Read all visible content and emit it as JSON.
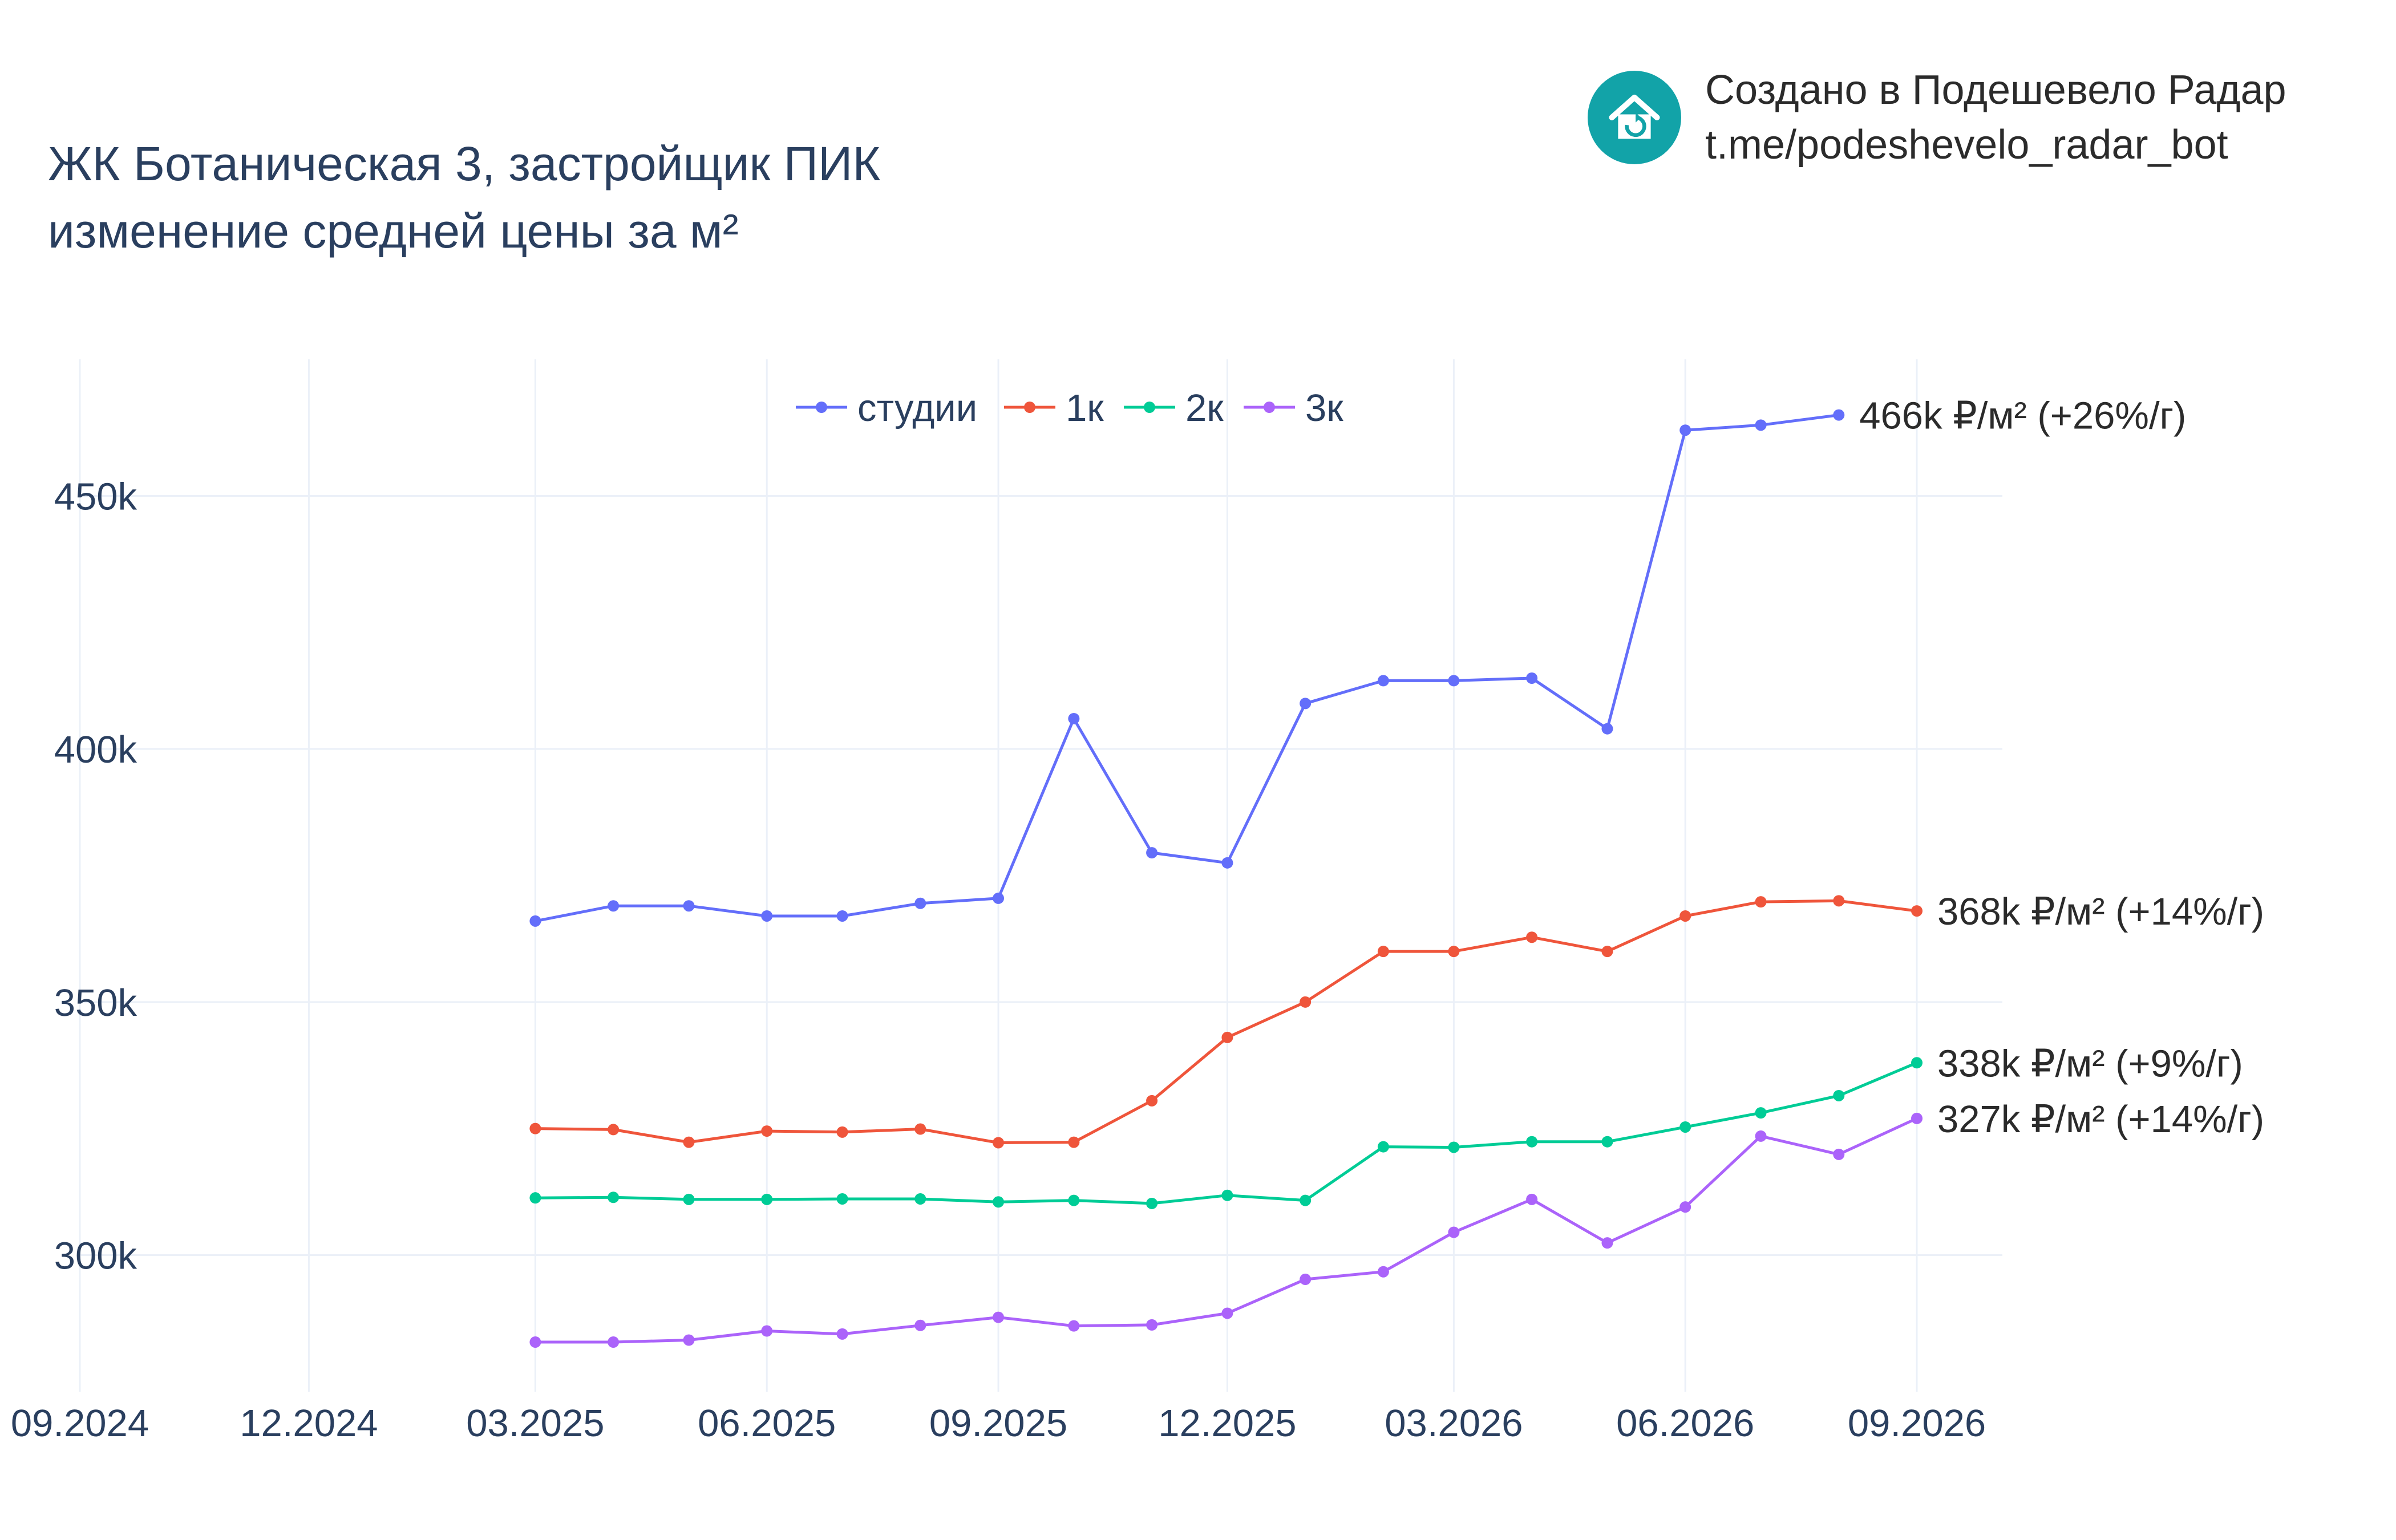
{
  "header": {
    "title_line1": "ЖК Ботаническая 3, застройщик ПИК",
    "title_line2": "изменение средней цены за м²"
  },
  "branding": {
    "line1": "Создано в Подешевело Радар",
    "line2": "t.me/podeshevelo_radar_bot",
    "logo_icon": "house-price-drop-icon",
    "logo_color": "#12a3a8"
  },
  "chart_data": {
    "type": "line",
    "x_axis": {
      "type": "date",
      "range": [
        "2024-09-01",
        "2026-10-05"
      ],
      "ticks": [
        {
          "date": "2024-09-01",
          "label": "09.2024"
        },
        {
          "date": "2024-12-01",
          "label": "12.2024"
        },
        {
          "date": "2025-03-01",
          "label": "03.2025"
        },
        {
          "date": "2025-06-01",
          "label": "06.2025"
        },
        {
          "date": "2025-09-01",
          "label": "09.2025"
        },
        {
          "date": "2025-12-01",
          "label": "12.2025"
        },
        {
          "date": "2026-03-01",
          "label": "03.2026"
        },
        {
          "date": "2026-06-01",
          "label": "06.2026"
        },
        {
          "date": "2026-09-01",
          "label": "09.2026"
        }
      ]
    },
    "y_axis": {
      "range": [
        273000,
        477000
      ],
      "ticks": [
        {
          "value": 300000,
          "label": "300k"
        },
        {
          "value": 350000,
          "label": "350k"
        },
        {
          "value": 400000,
          "label": "400k"
        },
        {
          "value": 450000,
          "label": "450k"
        }
      ]
    },
    "grid": true,
    "legend_position": "top-center",
    "series": [
      {
        "name": "студии",
        "color": "#636efa",
        "end_label": "466k ₽/м² (+26%/г)",
        "points": [
          [
            "2025-03-01",
            366000
          ],
          [
            "2025-04-01",
            369000
          ],
          [
            "2025-05-01",
            369000
          ],
          [
            "2025-06-01",
            367000
          ],
          [
            "2025-07-01",
            367000
          ],
          [
            "2025-08-01",
            369500
          ],
          [
            "2025-09-01",
            370500
          ],
          [
            "2025-10-01",
            406000
          ],
          [
            "2025-11-01",
            379500
          ],
          [
            "2025-12-01",
            377500
          ],
          [
            "2026-01-01",
            409000
          ],
          [
            "2026-02-01",
            413500
          ],
          [
            "2026-03-01",
            413500
          ],
          [
            "2026-04-01",
            414000
          ],
          [
            "2026-05-01",
            404000
          ],
          [
            "2026-06-01",
            463000
          ],
          [
            "2026-07-01",
            464000
          ],
          [
            "2026-08-01",
            466000
          ]
        ]
      },
      {
        "name": "1к",
        "color": "#ef553b",
        "end_label": "368k ₽/м² (+14%/г)",
        "points": [
          [
            "2025-03-01",
            325000
          ],
          [
            "2025-04-01",
            324800
          ],
          [
            "2025-05-01",
            322300
          ],
          [
            "2025-06-01",
            324500
          ],
          [
            "2025-07-01",
            324300
          ],
          [
            "2025-08-01",
            324900
          ],
          [
            "2025-09-01",
            322200
          ],
          [
            "2025-10-01",
            322300
          ],
          [
            "2025-11-01",
            330500
          ],
          [
            "2025-12-01",
            343000
          ],
          [
            "2026-01-01",
            350000
          ],
          [
            "2026-02-01",
            360000
          ],
          [
            "2026-03-01",
            360000
          ],
          [
            "2026-04-01",
            362800
          ],
          [
            "2026-05-01",
            360000
          ],
          [
            "2026-06-01",
            367000
          ],
          [
            "2026-07-01",
            369800
          ],
          [
            "2026-08-01",
            370000
          ],
          [
            "2026-09-01",
            368000
          ]
        ]
      },
      {
        "name": "2к",
        "color": "#00cc96",
        "end_label": "338k ₽/м² (+9%/г)",
        "points": [
          [
            "2025-03-01",
            311300
          ],
          [
            "2025-04-01",
            311400
          ],
          [
            "2025-05-01",
            311000
          ],
          [
            "2025-06-01",
            311000
          ],
          [
            "2025-07-01",
            311100
          ],
          [
            "2025-08-01",
            311100
          ],
          [
            "2025-09-01",
            310500
          ],
          [
            "2025-10-01",
            310800
          ],
          [
            "2025-11-01",
            310200
          ],
          [
            "2025-12-01",
            311800
          ],
          [
            "2026-01-01",
            310800
          ],
          [
            "2026-02-01",
            321400
          ],
          [
            "2026-03-01",
            321300
          ],
          [
            "2026-04-01",
            322400
          ],
          [
            "2026-05-01",
            322400
          ],
          [
            "2026-06-01",
            325300
          ],
          [
            "2026-07-01",
            328100
          ],
          [
            "2026-08-01",
            331500
          ],
          [
            "2026-09-01",
            338000
          ]
        ]
      },
      {
        "name": "3к",
        "color": "#ab63fa",
        "end_label": "327k ₽/м² (+14%/г)",
        "points": [
          [
            "2025-03-01",
            282800
          ],
          [
            "2025-04-01",
            282800
          ],
          [
            "2025-05-01",
            283200
          ],
          [
            "2025-06-01",
            285000
          ],
          [
            "2025-07-01",
            284400
          ],
          [
            "2025-08-01",
            286100
          ],
          [
            "2025-09-01",
            287700
          ],
          [
            "2025-10-01",
            286000
          ],
          [
            "2025-11-01",
            286200
          ],
          [
            "2025-12-01",
            288500
          ],
          [
            "2026-01-01",
            295200
          ],
          [
            "2026-02-01",
            296700
          ],
          [
            "2026-03-01",
            304500
          ],
          [
            "2026-04-01",
            311000
          ],
          [
            "2026-05-01",
            302400
          ],
          [
            "2026-06-01",
            309500
          ],
          [
            "2026-07-01",
            323500
          ],
          [
            "2026-08-01",
            319900
          ],
          [
            "2026-09-01",
            327000
          ]
        ]
      }
    ]
  }
}
